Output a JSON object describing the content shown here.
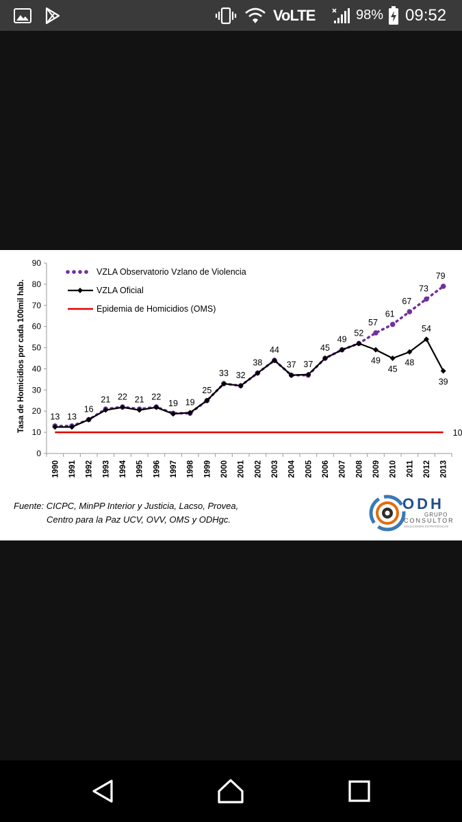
{
  "status_bar": {
    "battery": "98%",
    "time": "09:52",
    "network": "VoLTE",
    "icons": [
      "image-icon",
      "play-store-icon",
      "vibrate-icon",
      "wifi-icon",
      "volte-icon",
      "signal-icon",
      "battery-charging-icon"
    ]
  },
  "chart_data": {
    "type": "line",
    "title": "",
    "xlabel": "",
    "ylabel": "Tasa de Homicidios por cada 100mil hab.",
    "ylim": [
      0,
      90
    ],
    "yticks": [
      0,
      10,
      20,
      30,
      40,
      50,
      60,
      70,
      80,
      90
    ],
    "grid": false,
    "legend_position": "top-left",
    "categories": [
      "1990",
      "1991",
      "1992",
      "1993",
      "1994",
      "1995",
      "1996",
      "1997",
      "1998",
      "1999",
      "2000",
      "2001",
      "2002",
      "2003",
      "2004",
      "2005",
      "2006",
      "2007",
      "2008",
      "2009",
      "2010",
      "2011",
      "2012",
      "2013"
    ],
    "series": [
      {
        "name": "VZLA Observatorio Vzlano de Violencia",
        "color": "#7030a0",
        "style": "dotted",
        "values": [
          13,
          13,
          16,
          21,
          22,
          21,
          22,
          19,
          19,
          25,
          33,
          32,
          38,
          44,
          37,
          37,
          45,
          49,
          52,
          57,
          61,
          67,
          73,
          79
        ],
        "labels": {
          "2009": "57",
          "2010": "61",
          "2011": "67",
          "2012": "73",
          "2013": "79"
        }
      },
      {
        "name": "VZLA Oficial",
        "color": "#000000",
        "style": "solid",
        "values": [
          12.5,
          12.5,
          16,
          20.5,
          21.8,
          20.5,
          21.8,
          18.7,
          19.3,
          25,
          33,
          32,
          38,
          44,
          37,
          37.3,
          45,
          49,
          52,
          49,
          45,
          48,
          54,
          39
        ],
        "labels": {
          "1990": "13",
          "1991": "13",
          "1992": "16",
          "1993": "21",
          "1994": "22",
          "1995": "21",
          "1996": "22",
          "1997": "19",
          "1998": "19",
          "1999": "25",
          "2000": "33",
          "2001": "32",
          "2002": "38",
          "2003": "44",
          "2004": "37",
          "2005": "37",
          "2006": "45",
          "2007": "49",
          "2008": "52",
          "2009": "49",
          "2010": "45",
          "2011": "48",
          "2012": "54",
          "2013": "39"
        }
      },
      {
        "name": "Epidemia de Homicidios (OMS)",
        "color": "#e00000",
        "style": "solid",
        "values": [
          10,
          10,
          10,
          10,
          10,
          10,
          10,
          10,
          10,
          10,
          10,
          10,
          10,
          10,
          10,
          10,
          10,
          10,
          10,
          10,
          10,
          10,
          10,
          10
        ],
        "labels": {
          "2013": "10"
        }
      }
    ]
  },
  "source": {
    "line1": "Fuente: CICPC, MinPP Interior y Justicia, Lacso, Provea,",
    "line2": "Centro para la Paz UCV, OVV, OMS y ODHgc."
  },
  "logo": {
    "main": "ODH",
    "sub1": "GRUPO",
    "sub2": "CONSULTOR",
    "sub3": "SOLUCIONES ESTRATÉGICAS"
  },
  "nav": [
    "back-icon",
    "home-icon",
    "recents-icon"
  ]
}
